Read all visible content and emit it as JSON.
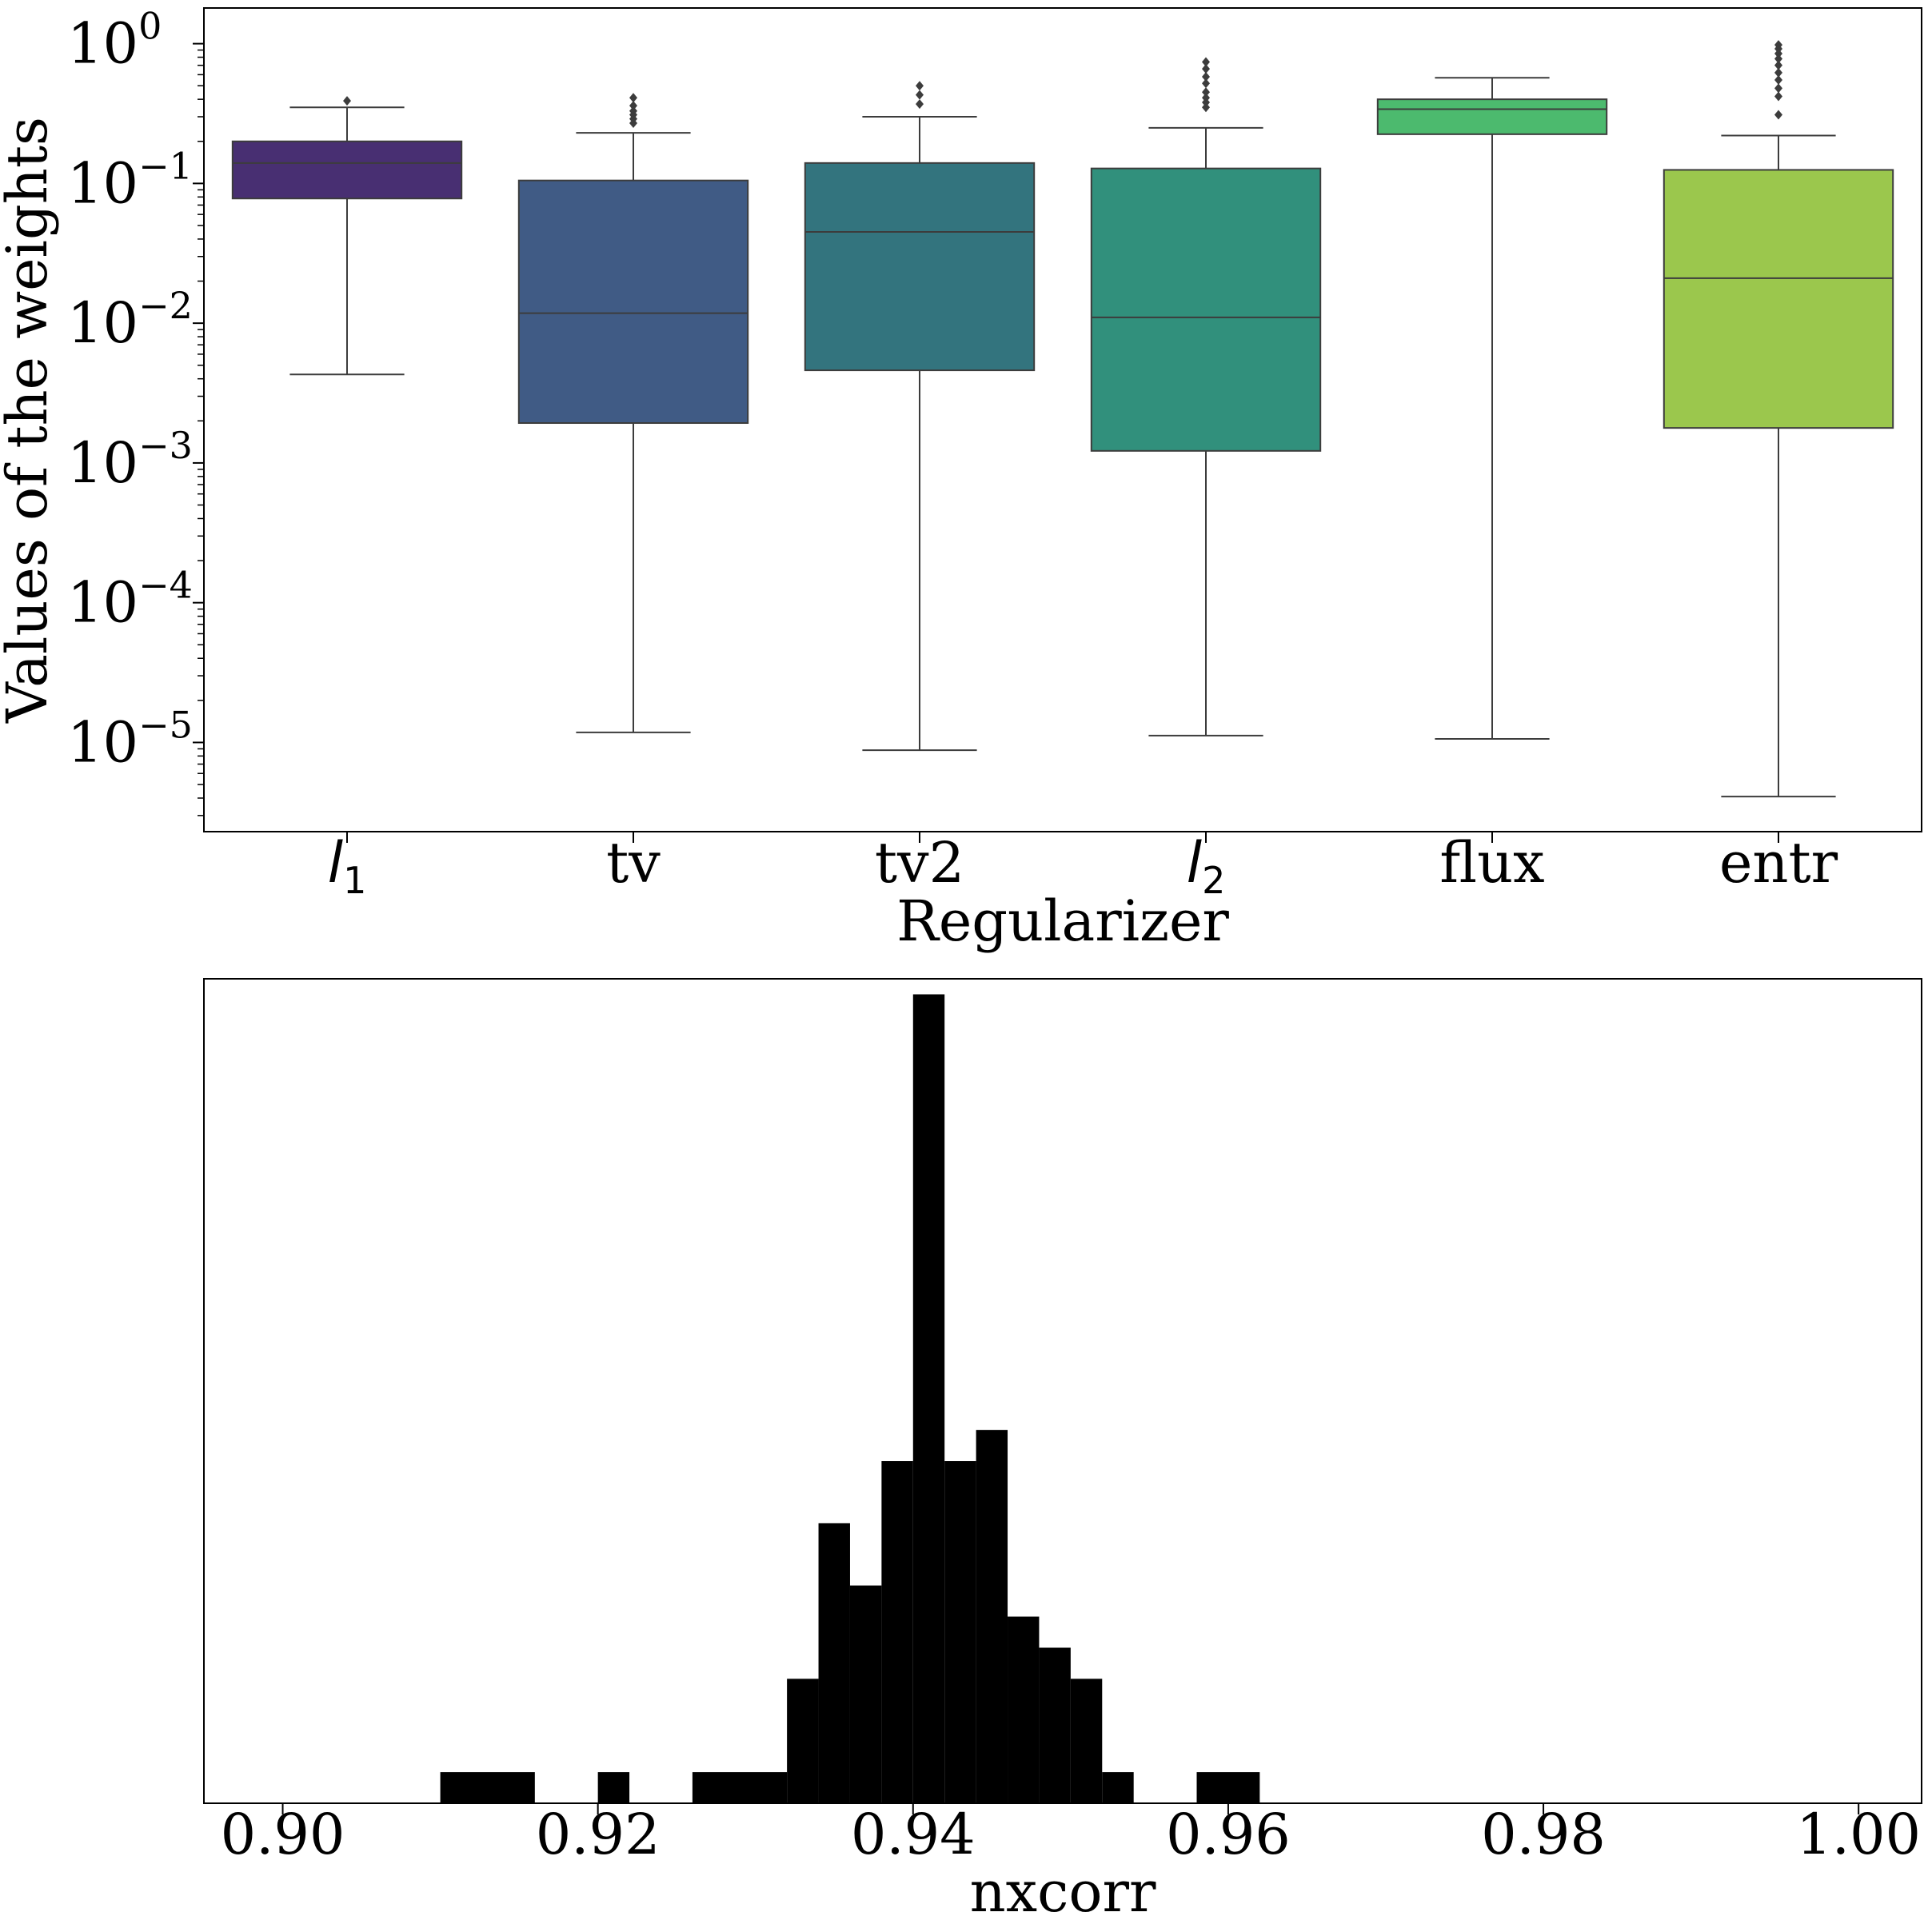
{
  "chart_data": [
    {
      "type": "box",
      "xlabel": "Regularizer",
      "ylabel": "Values of the weights",
      "yscale": "log",
      "ylim": [
        2.3e-06,
        1.8
      ],
      "y_ticks": [
        {
          "value": 1,
          "base": "10",
          "exp": "0"
        },
        {
          "value": 0.1,
          "base": "10",
          "exp": "−1"
        },
        {
          "value": 0.01,
          "base": "10",
          "exp": "−2"
        },
        {
          "value": 0.001,
          "base": "10",
          "exp": "−3"
        },
        {
          "value": 0.0001,
          "base": "10",
          "exp": "−4"
        },
        {
          "value": 1e-05,
          "base": "10",
          "exp": "−5"
        }
      ],
      "grid": false,
      "boxes": [
        {
          "category": "l",
          "subscript": "1",
          "italic": true,
          "color": "#482f72",
          "whisker_low": 0.0043,
          "q1": 0.078,
          "median": 0.14,
          "q3": 0.2,
          "whisker_high": 0.35,
          "outliers": [
            0.39
          ]
        },
        {
          "category": "tv",
          "subscript": "",
          "italic": false,
          "color": "#405b85",
          "whisker_low": 1.18e-05,
          "q1": 0.00193,
          "median": 0.0118,
          "q3": 0.105,
          "whisker_high": 0.23,
          "outliers": [
            0.27,
            0.29,
            0.31,
            0.33,
            0.36,
            0.41
          ]
        },
        {
          "category": "tv2",
          "subscript": "",
          "italic": false,
          "color": "#33747e",
          "whisker_low": 8.8e-06,
          "q1": 0.0046,
          "median": 0.045,
          "q3": 0.14,
          "whisker_high": 0.3,
          "outliers": [
            0.37,
            0.43,
            0.5
          ]
        },
        {
          "category": "l",
          "subscript": "2",
          "italic": true,
          "color": "#31907c",
          "whisker_low": 1.12e-05,
          "q1": 0.00122,
          "median": 0.011,
          "q3": 0.128,
          "whisker_high": 0.25,
          "outliers": [
            0.35,
            0.38,
            0.41,
            0.45,
            0.52,
            0.58,
            0.66,
            0.74
          ]
        },
        {
          "category": "flux",
          "subscript": "",
          "italic": false,
          "color": "#4cba6e",
          "whisker_low": 1.06e-05,
          "q1": 0.225,
          "median": 0.34,
          "q3": 0.4,
          "whisker_high": 0.57,
          "outliers": []
        },
        {
          "category": "entr",
          "subscript": "",
          "italic": false,
          "color": "#9bc74d",
          "whisker_low": 4.1e-06,
          "q1": 0.00178,
          "median": 0.021,
          "q3": 0.125,
          "whisker_high": 0.22,
          "outliers": [
            0.31,
            0.42,
            0.48,
            0.55,
            0.62,
            0.7,
            0.78,
            0.85,
            0.92,
            0.98
          ]
        }
      ]
    },
    {
      "type": "histogram",
      "xlabel": "nxcorr",
      "ylabel": "",
      "xlim": [
        0.895,
        1.004
      ],
      "x_ticks": [
        "0.90",
        "0.92",
        "0.94",
        "0.96",
        "0.98",
        "1.00"
      ],
      "x_tick_values": [
        0.9,
        0.92,
        0.94,
        0.96,
        0.98,
        1.0
      ],
      "y_ticks_shown": false,
      "bin_width": 0.002,
      "bar_color": "#000000",
      "bins": [
        {
          "start": 0.91,
          "end": 0.916,
          "count": 1
        },
        {
          "start": 0.92,
          "end": 0.922,
          "count": 1
        },
        {
          "start": 0.926,
          "end": 0.932,
          "count": 1
        },
        {
          "start": 0.932,
          "end": 0.934,
          "count": 4
        },
        {
          "start": 0.934,
          "end": 0.936,
          "count": 9
        },
        {
          "start": 0.936,
          "end": 0.938,
          "count": 7
        },
        {
          "start": 0.938,
          "end": 0.94,
          "count": 11
        },
        {
          "start": 0.94,
          "end": 0.942,
          "count": 26
        },
        {
          "start": 0.942,
          "end": 0.944,
          "count": 11
        },
        {
          "start": 0.944,
          "end": 0.946,
          "count": 12
        },
        {
          "start": 0.946,
          "end": 0.948,
          "count": 6
        },
        {
          "start": 0.948,
          "end": 0.95,
          "count": 5
        },
        {
          "start": 0.95,
          "end": 0.952,
          "count": 4
        },
        {
          "start": 0.952,
          "end": 0.954,
          "count": 1
        },
        {
          "start": 0.958,
          "end": 0.962,
          "count": 1
        }
      ],
      "ylim": [
        0,
        26.5
      ]
    }
  ]
}
